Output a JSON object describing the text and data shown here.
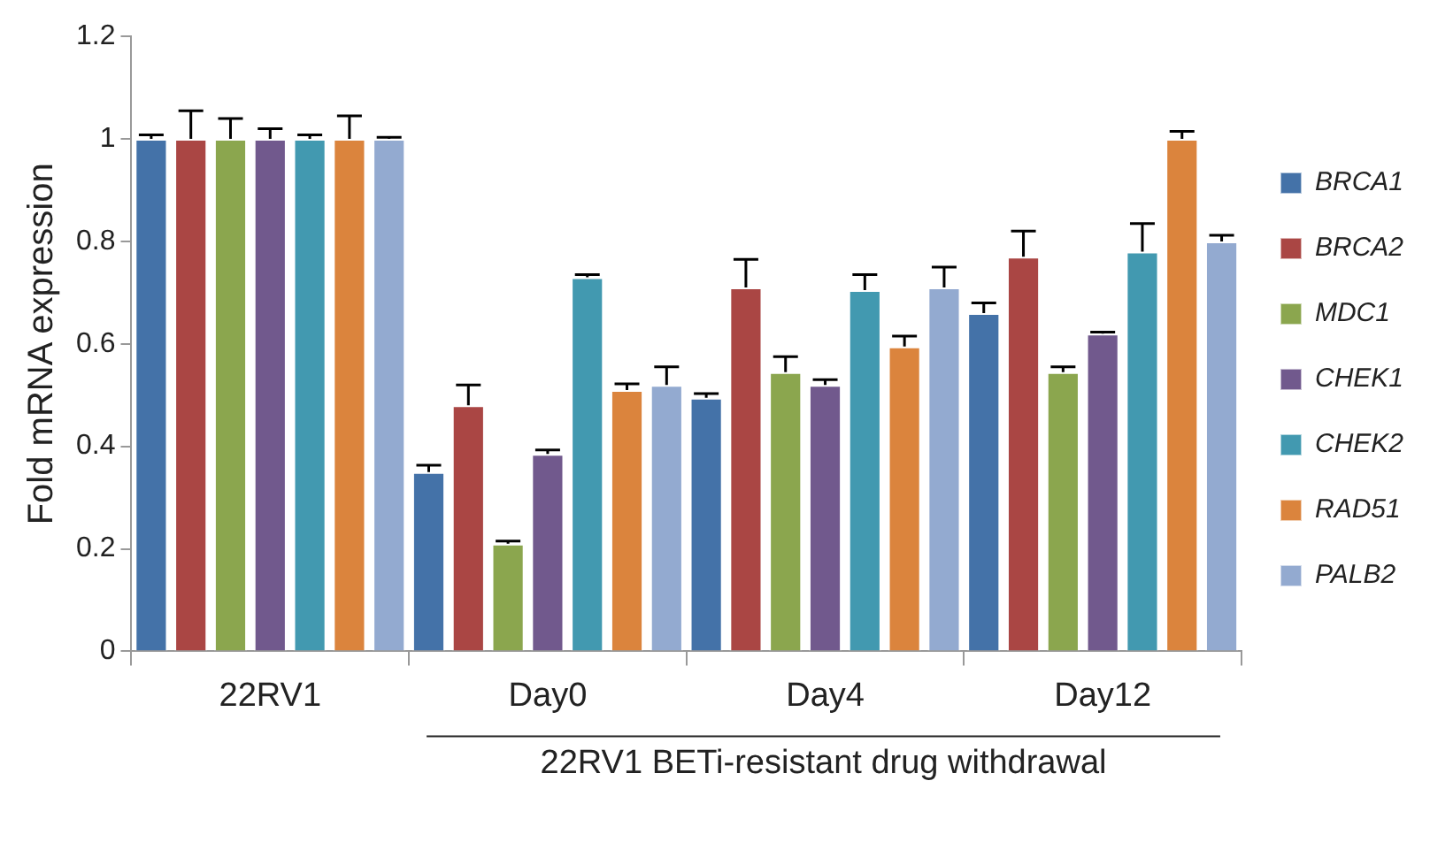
{
  "chart_data": {
    "type": "bar",
    "ylabel": "Fold mRNA expression",
    "categories": [
      "22RV1",
      "Day0",
      "Day4",
      "Day12"
    ],
    "series": [
      {
        "name": "BRCA1",
        "color": "#4472a8",
        "values": [
          1,
          0.35,
          0.495,
          0.66
        ],
        "errors": [
          [
            1,
            1.008
          ],
          [
            0.35,
            0.363
          ],
          [
            0.495,
            0.503
          ],
          [
            0.66,
            0.68
          ]
        ]
      },
      {
        "name": "BRCA2",
        "color": "#aa4644",
        "values": [
          1,
          0.48,
          0.71,
          0.77
        ],
        "errors": [
          [
            1,
            1.055
          ],
          [
            0.48,
            0.52
          ],
          [
            0.71,
            0.765
          ],
          [
            0.77,
            0.82
          ]
        ]
      },
      {
        "name": "MDC1",
        "color": "#8ba64e",
        "values": [
          1,
          0.21,
          0.545,
          0.545
        ],
        "errors": [
          [
            1,
            1.04
          ],
          [
            0.21,
            0.215
          ],
          [
            0.545,
            0.575
          ],
          [
            0.545,
            0.555
          ]
        ]
      },
      {
        "name": "CHEK1",
        "color": "#71598d",
        "values": [
          1,
          0.385,
          0.52,
          0.62
        ],
        "errors": [
          [
            1,
            1.02
          ],
          [
            0.385,
            0.393
          ],
          [
            0.52,
            0.53
          ],
          [
            0.62,
            0.623
          ]
        ]
      },
      {
        "name": "CHEK2",
        "color": "#4299b0",
        "values": [
          1,
          0.73,
          0.705,
          0.78
        ],
        "errors": [
          [
            1,
            1.008
          ],
          [
            0.73,
            0.735
          ],
          [
            0.705,
            0.735
          ],
          [
            0.78,
            0.835
          ]
        ]
      },
      {
        "name": "RAD51",
        "color": "#db843d",
        "values": [
          1,
          0.51,
          0.595,
          1.0
        ],
        "errors": [
          [
            1,
            1.045
          ],
          [
            0.51,
            0.522
          ],
          [
            0.595,
            0.615
          ],
          [
            1.0,
            1.015
          ]
        ]
      },
      {
        "name": "PALB2",
        "color": "#93aad0",
        "values": [
          1,
          0.52,
          0.71,
          0.8
        ],
        "errors": [
          [
            1,
            1.003
          ],
          [
            0.52,
            0.555
          ],
          [
            0.71,
            0.75
          ],
          [
            0.8,
            0.812
          ]
        ]
      }
    ],
    "ylim": [
      0,
      1.2
    ],
    "yticks": [
      0,
      0.2,
      0.4,
      0.6,
      0.8,
      1,
      1.2
    ],
    "grid": false,
    "legend": "right",
    "annotations": [
      "22RV1 BETi-resistant drug withdrawal"
    ]
  }
}
